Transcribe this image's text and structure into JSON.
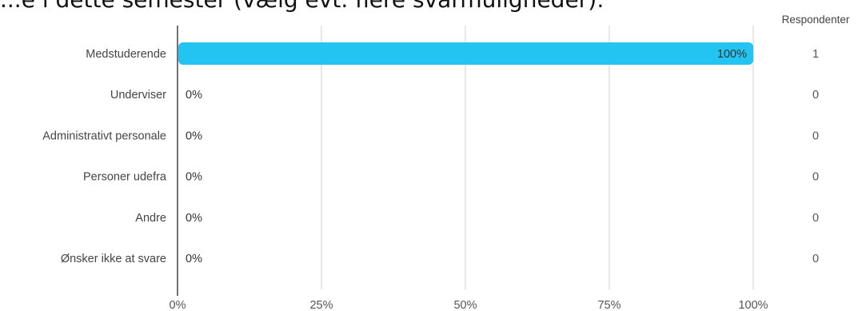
{
  "chart_data": {
    "type": "bar",
    "orientation": "horizontal",
    "title": "...e i dette semester (vælg evt. flere svarmuligheder):",
    "categories": [
      "Medstuderende",
      "Underviser",
      "Administrativt personale",
      "Personer udefra",
      "Andre",
      "Ønsker ikke at svare"
    ],
    "values": [
      100,
      0,
      0,
      0,
      0,
      0
    ],
    "value_labels": [
      "100%",
      "0%",
      "0%",
      "0%",
      "0%",
      "0%"
    ],
    "counts_header": "Respondenter",
    "counts": [
      "1",
      "0",
      "0",
      "0",
      "0",
      "0"
    ],
    "x_ticks": [
      0,
      25,
      50,
      75,
      100
    ],
    "x_tick_labels": [
      "0%",
      "25%",
      "50%",
      "75%",
      "100%"
    ],
    "xlim": [
      0,
      100
    ],
    "grid": true,
    "bar_color": "#23c4f2"
  }
}
